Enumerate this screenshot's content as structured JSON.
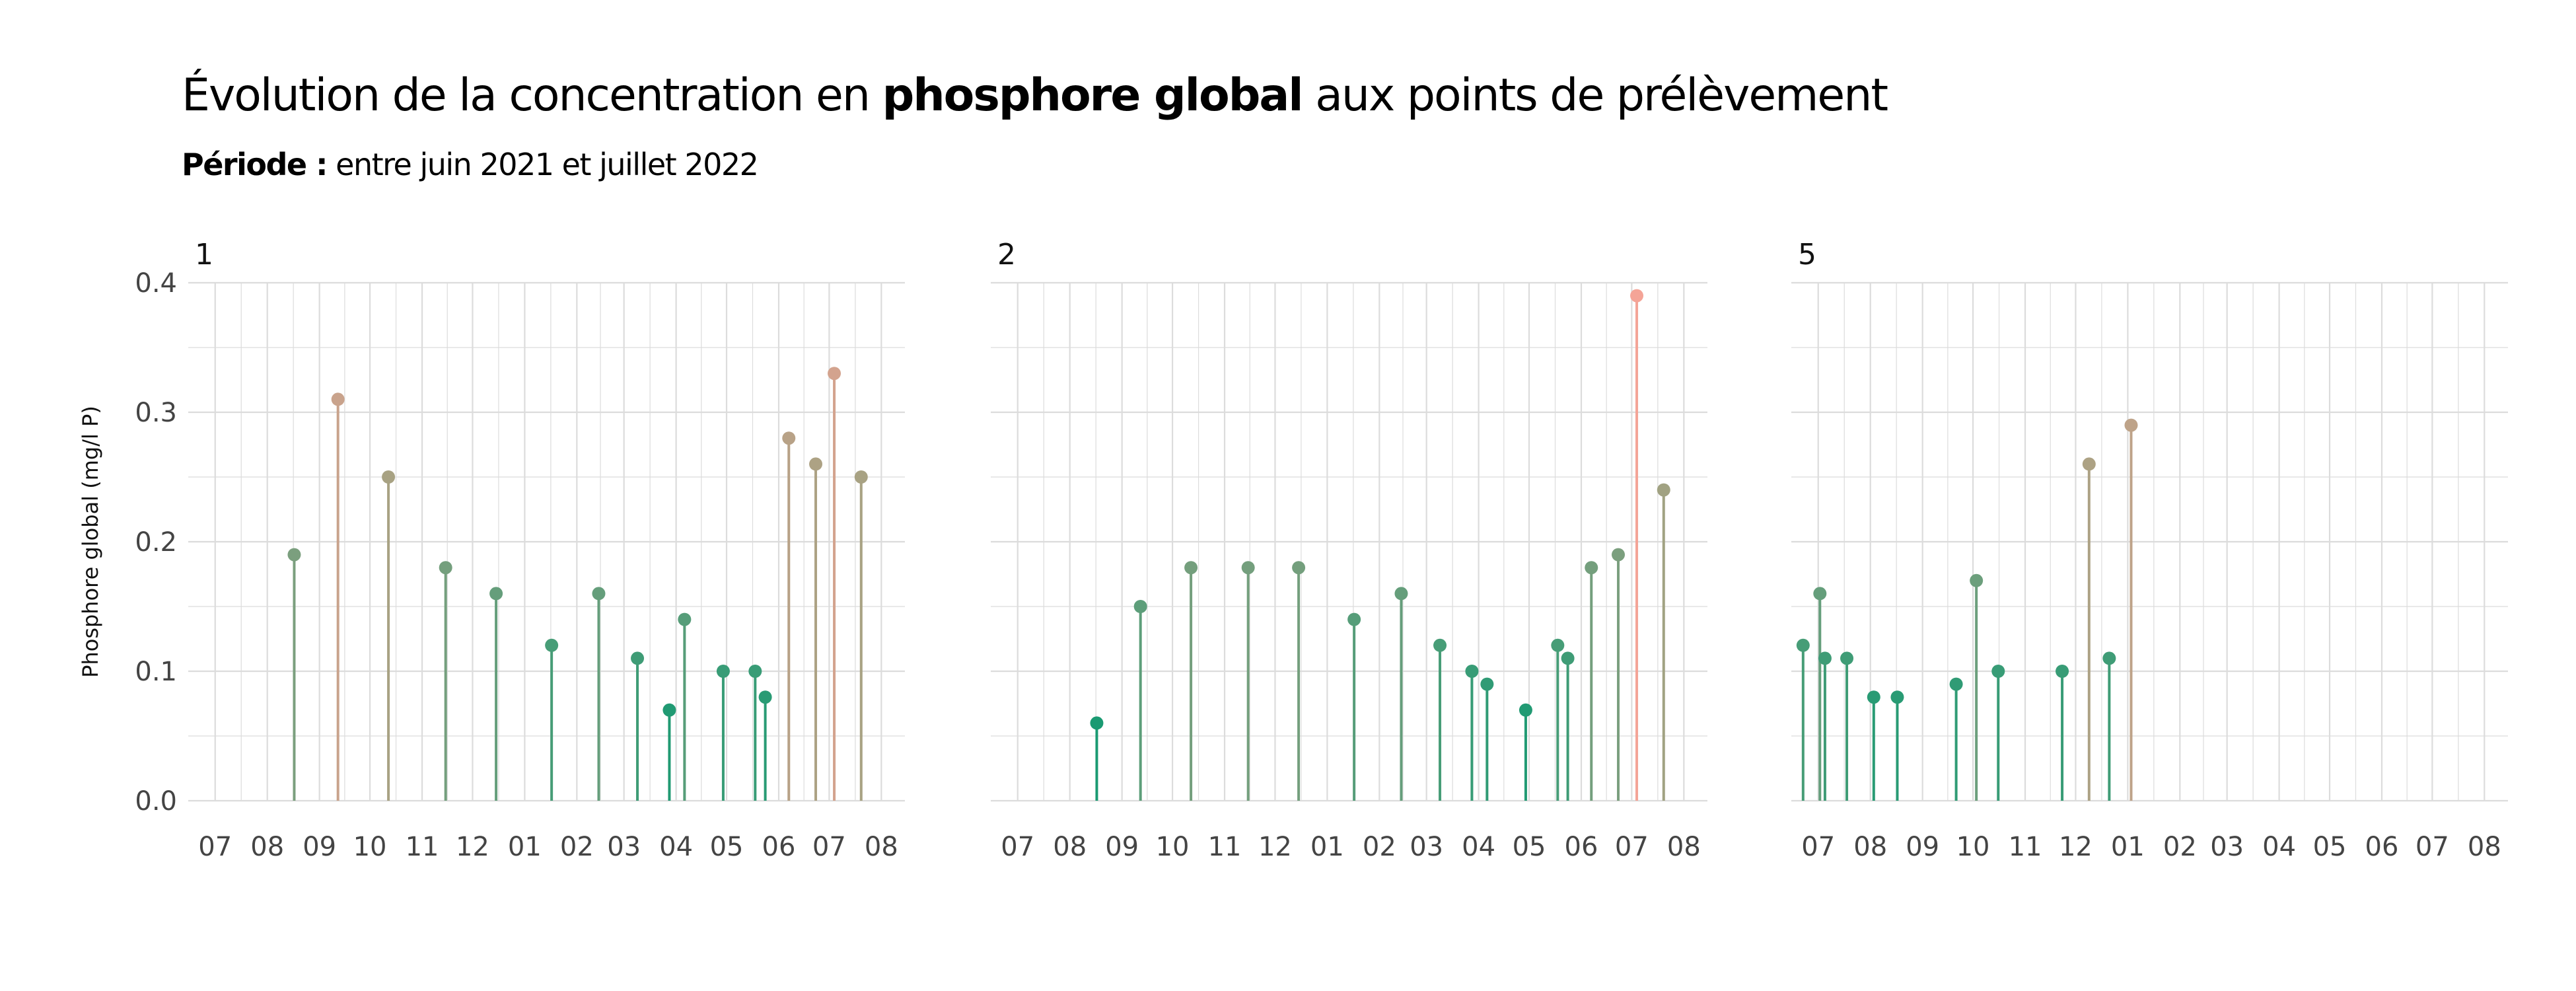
{
  "title": {
    "before": "Évolution de la concentration en ",
    "bold": "phosphore global",
    "after": " aux points de prélèvement"
  },
  "subtitle": {
    "bold": "Période :",
    "text": " entre juin 2021 et juillet 2022"
  },
  "colors": {
    "low": "#1a9a72",
    "mid": "#a8a283",
    "high": "#f4a497",
    "grid": "#dcdcdc"
  },
  "chart_data": [
    {
      "type": "lollipop",
      "panel": "1",
      "ylabel": "Phosphore global (mg/l P)",
      "ylim": [
        0,
        0.4
      ],
      "yticks": [
        "0.0",
        "0.1",
        "0.2",
        "0.3",
        "0.4"
      ],
      "xlim": [
        "2021-06-15",
        "2022-08-15"
      ],
      "xticks": [
        {
          "date": "2021-07-01",
          "label": "07"
        },
        {
          "date": "2021-08-01",
          "label": "08"
        },
        {
          "date": "2021-09-01",
          "label": "09"
        },
        {
          "date": "2021-10-01",
          "label": "10"
        },
        {
          "date": "2021-11-01",
          "label": "11"
        },
        {
          "date": "2021-12-01",
          "label": "12"
        },
        {
          "date": "2022-01-01",
          "label": "01"
        },
        {
          "date": "2022-02-01",
          "label": "02"
        },
        {
          "date": "2022-03-01",
          "label": "03"
        },
        {
          "date": "2022-04-01",
          "label": "04"
        },
        {
          "date": "2022-05-01",
          "label": "05"
        },
        {
          "date": "2022-06-01",
          "label": "06"
        },
        {
          "date": "2022-07-01",
          "label": "07"
        },
        {
          "date": "2022-08-01",
          "label": "08"
        }
      ],
      "points": [
        {
          "x": "2021-08-17",
          "y": 0.19
        },
        {
          "x": "2021-09-12",
          "y": 0.31
        },
        {
          "x": "2021-10-12",
          "y": 0.25
        },
        {
          "x": "2021-11-15",
          "y": 0.18
        },
        {
          "x": "2021-12-15",
          "y": 0.16
        },
        {
          "x": "2022-01-17",
          "y": 0.12
        },
        {
          "x": "2022-02-14",
          "y": 0.16
        },
        {
          "x": "2022-03-09",
          "y": 0.11
        },
        {
          "x": "2022-03-28",
          "y": 0.07
        },
        {
          "x": "2022-04-06",
          "y": 0.14
        },
        {
          "x": "2022-04-29",
          "y": 0.1
        },
        {
          "x": "2022-05-18",
          "y": 0.1
        },
        {
          "x": "2022-05-24",
          "y": 0.08
        },
        {
          "x": "2022-06-07",
          "y": 0.28
        },
        {
          "x": "2022-06-23",
          "y": 0.26
        },
        {
          "x": "2022-07-04",
          "y": 0.33
        },
        {
          "x": "2022-07-20",
          "y": 0.25
        }
      ]
    },
    {
      "type": "lollipop",
      "panel": "2",
      "ylim": [
        0,
        0.4
      ],
      "xlim": [
        "2021-06-15",
        "2022-08-15"
      ],
      "xticks": [
        {
          "date": "2021-07-01",
          "label": "07"
        },
        {
          "date": "2021-08-01",
          "label": "08"
        },
        {
          "date": "2021-09-01",
          "label": "09"
        },
        {
          "date": "2021-10-01",
          "label": "10"
        },
        {
          "date": "2021-11-01",
          "label": "11"
        },
        {
          "date": "2021-12-01",
          "label": "12"
        },
        {
          "date": "2022-01-01",
          "label": "01"
        },
        {
          "date": "2022-02-01",
          "label": "02"
        },
        {
          "date": "2022-03-01",
          "label": "03"
        },
        {
          "date": "2022-04-01",
          "label": "04"
        },
        {
          "date": "2022-05-01",
          "label": "05"
        },
        {
          "date": "2022-06-01",
          "label": "06"
        },
        {
          "date": "2022-07-01",
          "label": "07"
        },
        {
          "date": "2022-08-01",
          "label": "08"
        }
      ],
      "points": [
        {
          "x": "2021-08-17",
          "y": 0.06
        },
        {
          "x": "2021-09-12",
          "y": 0.15
        },
        {
          "x": "2021-10-12",
          "y": 0.18
        },
        {
          "x": "2021-11-15",
          "y": 0.18
        },
        {
          "x": "2021-12-15",
          "y": 0.18
        },
        {
          "x": "2022-01-17",
          "y": 0.14
        },
        {
          "x": "2022-02-14",
          "y": 0.16
        },
        {
          "x": "2022-03-09",
          "y": 0.12
        },
        {
          "x": "2022-03-28",
          "y": 0.1
        },
        {
          "x": "2022-04-06",
          "y": 0.09
        },
        {
          "x": "2022-04-29",
          "y": 0.07
        },
        {
          "x": "2022-05-18",
          "y": 0.12
        },
        {
          "x": "2022-05-24",
          "y": 0.11
        },
        {
          "x": "2022-06-07",
          "y": 0.18
        },
        {
          "x": "2022-06-23",
          "y": 0.19
        },
        {
          "x": "2022-07-04",
          "y": 0.39
        },
        {
          "x": "2022-07-20",
          "y": 0.24
        }
      ]
    },
    {
      "type": "lollipop",
      "panel": "5",
      "ylim": [
        0,
        0.4
      ],
      "xlim": [
        "2021-06-15",
        "2022-08-15"
      ],
      "xticks": [
        {
          "date": "2021-07-01",
          "label": "07"
        },
        {
          "date": "2021-08-01",
          "label": "08"
        },
        {
          "date": "2021-09-01",
          "label": "09"
        },
        {
          "date": "2021-10-01",
          "label": "10"
        },
        {
          "date": "2021-11-01",
          "label": "11"
        },
        {
          "date": "2021-12-01",
          "label": "12"
        },
        {
          "date": "2022-01-01",
          "label": "01"
        },
        {
          "date": "2022-02-01",
          "label": "02"
        },
        {
          "date": "2022-03-01",
          "label": "03"
        },
        {
          "date": "2022-04-01",
          "label": "04"
        },
        {
          "date": "2022-05-01",
          "label": "05"
        },
        {
          "date": "2022-06-01",
          "label": "06"
        },
        {
          "date": "2022-07-01",
          "label": "07"
        },
        {
          "date": "2022-08-01",
          "label": "08"
        }
      ],
      "points": [
        {
          "x": "2021-06-22",
          "y": 0.12
        },
        {
          "x": "2021-07-02",
          "y": 0.16
        },
        {
          "x": "2021-07-05",
          "y": 0.11
        },
        {
          "x": "2021-07-18",
          "y": 0.11
        },
        {
          "x": "2021-08-03",
          "y": 0.08
        },
        {
          "x": "2021-08-17",
          "y": 0.08
        },
        {
          "x": "2021-09-21",
          "y": 0.09
        },
        {
          "x": "2021-10-03",
          "y": 0.17
        },
        {
          "x": "2021-10-16",
          "y": 0.1
        },
        {
          "x": "2021-11-23",
          "y": 0.1
        },
        {
          "x": "2021-12-09",
          "y": 0.26
        },
        {
          "x": "2021-12-21",
          "y": 0.11
        },
        {
          "x": "2022-01-03",
          "y": 0.29
        }
      ]
    }
  ]
}
